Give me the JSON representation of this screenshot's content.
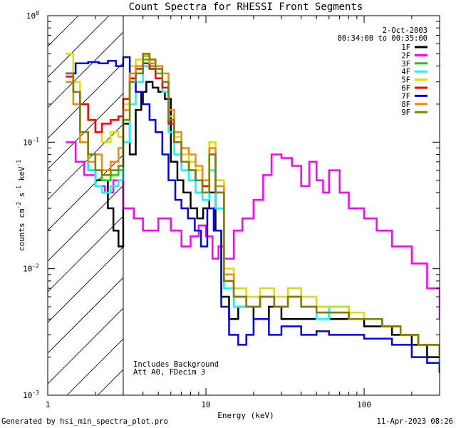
{
  "chart_data": {
    "type": "line",
    "title": "Count Spectra for RHESSI Front Segments",
    "xlabel": "Energy (keV)",
    "ylabel_base": "counts cm",
    "ylabel_parts": [
      "-2",
      " s",
      "-1",
      " keV",
      "-1"
    ],
    "x_scale": "log",
    "y_scale": "log",
    "xlim": [
      1,
      300
    ],
    "ylim": [
      0.001,
      1
    ],
    "x_ticks": [
      {
        "value": 1,
        "label": "1"
      },
      {
        "value": 10,
        "label": "10"
      },
      {
        "value": 100,
        "label": "100"
      }
    ],
    "y_ticks": [
      {
        "value": 1,
        "base": "10",
        "exp": "0"
      },
      {
        "value": 0.1,
        "base": "10",
        "exp": "-1"
      },
      {
        "value": 0.01,
        "base": "10",
        "exp": "-2"
      },
      {
        "value": 0.001,
        "base": "10",
        "exp": "-3"
      }
    ],
    "hatch_region": {
      "x_max": 3
    },
    "legend": {
      "position": "top-right",
      "date": "2-Oct-2003",
      "time_range": "00:34:00 to 00:35:00"
    },
    "annotations": [
      "Includes Background",
      "Att A0, FDecim 3"
    ],
    "series": [
      {
        "name": "1F",
        "color": "#000000",
        "x": [
          1.3,
          1.45,
          1.6,
          1.8,
          2.0,
          2.2,
          2.4,
          2.6,
          2.8,
          3.0,
          3.3,
          3.6,
          3.9,
          4.2,
          4.6,
          5.0,
          5.5,
          6.0,
          6.6,
          7.2,
          8.0,
          8.8,
          9.6,
          10.5,
          11.5,
          12.5,
          14,
          16,
          18,
          20,
          25,
          30,
          40,
          50,
          60,
          80,
          100,
          150,
          200,
          250,
          300
        ],
        "y": [
          0.35,
          0.25,
          0.12,
          0.06,
          0.05,
          0.05,
          0.03,
          0.02,
          0.015,
          0.14,
          0.08,
          0.18,
          0.25,
          0.3,
          0.27,
          0.25,
          0.22,
          0.07,
          0.05,
          0.04,
          0.03,
          0.025,
          0.03,
          0.04,
          0.02,
          0.006,
          0.004,
          0.005,
          0.005,
          0.004,
          0.005,
          0.004,
          0.004,
          0.004,
          0.004,
          0.004,
          0.0035,
          0.003,
          0.0025,
          0.002,
          0.0015
        ]
      },
      {
        "name": "2F",
        "color": "#ff00ff",
        "x": [
          1.3,
          1.5,
          1.7,
          2.0,
          2.3,
          2.6,
          3.0,
          3.5,
          4.0,
          5.0,
          6.0,
          7.0,
          8.0,
          9.0,
          10.0,
          11.0,
          12.0,
          13.0,
          15.0,
          17.0,
          20.0,
          23.0,
          26.0,
          30.0,
          35.0,
          40.0,
          45.0,
          50.0,
          55.0,
          60.0,
          70.0,
          80.0,
          100.0,
          120.0,
          150.0,
          200.0,
          250.0,
          300.0
        ],
        "y": [
          0.1,
          0.07,
          0.055,
          0.045,
          0.04,
          0.05,
          0.03,
          0.025,
          0.02,
          0.025,
          0.02,
          0.015,
          0.018,
          0.022,
          0.018,
          0.012,
          0.015,
          0.012,
          0.02,
          0.025,
          0.035,
          0.055,
          0.08,
          0.075,
          0.065,
          0.045,
          0.07,
          0.05,
          0.04,
          0.06,
          0.04,
          0.03,
          0.025,
          0.02,
          0.015,
          0.011,
          0.007,
          0.004
        ]
      },
      {
        "name": "3F",
        "color": "#00dd00",
        "x": [
          1.3,
          1.45,
          1.6,
          1.8,
          2.0,
          2.2,
          2.5,
          2.8,
          3.0,
          3.3,
          3.6,
          4.0,
          4.4,
          4.8,
          5.3,
          5.8,
          6.3,
          7.0,
          7.8,
          8.6,
          9.5,
          10.5,
          11.5,
          13,
          15,
          18,
          22,
          27,
          33,
          40,
          50,
          60,
          80,
          100,
          130,
          170,
          220,
          300
        ],
        "y": [
          0.3,
          0.2,
          0.1,
          0.08,
          0.06,
          0.05,
          0.055,
          0.06,
          0.15,
          0.3,
          0.35,
          0.45,
          0.4,
          0.35,
          0.3,
          0.15,
          0.1,
          0.07,
          0.06,
          0.05,
          0.04,
          0.08,
          0.04,
          0.008,
          0.006,
          0.005,
          0.006,
          0.005,
          0.007,
          0.005,
          0.005,
          0.005,
          0.004,
          0.004,
          0.0035,
          0.003,
          0.0025,
          0.002
        ]
      },
      {
        "name": "4F",
        "color": "#00ffff",
        "x": [
          1.3,
          1.45,
          1.6,
          1.8,
          2.0,
          2.2,
          2.5,
          2.8,
          3.0,
          3.3,
          3.6,
          4.0,
          4.4,
          4.8,
          5.3,
          5.8,
          6.3,
          7.0,
          7.8,
          8.6,
          9.5,
          10.5,
          11.5,
          13,
          15,
          18,
          22,
          27,
          33,
          40,
          50,
          60,
          80,
          100,
          130,
          170,
          220,
          300
        ],
        "y": [
          0.3,
          0.2,
          0.1,
          0.06,
          0.045,
          0.04,
          0.045,
          0.05,
          0.1,
          0.2,
          0.3,
          0.4,
          0.38,
          0.32,
          0.25,
          0.12,
          0.08,
          0.06,
          0.05,
          0.04,
          0.035,
          0.06,
          0.03,
          0.007,
          0.005,
          0.005,
          0.006,
          0.005,
          0.006,
          0.005,
          0.004,
          0.005,
          0.004,
          0.004,
          0.0035,
          0.003,
          0.0025,
          0.0018
        ]
      },
      {
        "name": "5F",
        "color": "#dddd00",
        "x": [
          1.3,
          1.45,
          1.6,
          1.8,
          2.0,
          2.2,
          2.5,
          2.8,
          3.0,
          3.3,
          3.6,
          4.0,
          4.4,
          4.8,
          5.3,
          5.8,
          6.3,
          7.0,
          7.8,
          8.6,
          9.5,
          10.5,
          11.5,
          13,
          15,
          18,
          22,
          27,
          33,
          40,
          50,
          60,
          80,
          100,
          130,
          170,
          220,
          300
        ],
        "y": [
          0.5,
          0.3,
          0.2,
          0.15,
          0.12,
          0.1,
          0.12,
          0.11,
          0.2,
          0.4,
          0.45,
          0.5,
          0.45,
          0.38,
          0.3,
          0.16,
          0.11,
          0.08,
          0.07,
          0.06,
          0.05,
          0.1,
          0.05,
          0.01,
          0.007,
          0.006,
          0.007,
          0.006,
          0.007,
          0.006,
          0.005,
          0.005,
          0.0045,
          0.004,
          0.0035,
          0.003,
          0.0025,
          0.002
        ]
      },
      {
        "name": "6F",
        "color": "#ff0000",
        "x": [
          1.3,
          1.45,
          1.6,
          1.8,
          2.0,
          2.2,
          2.5,
          2.8,
          3.0,
          3.3,
          3.6,
          4.0,
          4.4,
          4.8,
          5.3,
          5.8,
          6.3,
          7.0,
          7.8,
          8.6,
          9.5,
          10.5,
          11.5,
          13,
          15,
          18,
          22,
          27,
          33,
          40,
          50,
          60,
          80,
          100,
          130,
          170,
          220,
          300
        ],
        "y": [
          0.33,
          0.25,
          0.2,
          0.15,
          0.12,
          0.14,
          0.15,
          0.16,
          0.22,
          0.32,
          0.38,
          0.42,
          0.38,
          0.32,
          0.27,
          0.14,
          0.1,
          0.07,
          0.06,
          0.05,
          0.045,
          0.08,
          0.04,
          0.008,
          0.006,
          0.005,
          0.006,
          0.005,
          0.006,
          0.005,
          0.0045,
          0.0045,
          0.004,
          0.004,
          0.0035,
          0.003,
          0.0025,
          0.002
        ]
      },
      {
        "name": "7F",
        "color": "#0000ff",
        "x": [
          1.3,
          1.5,
          1.8,
          2.1,
          2.4,
          2.7,
          3.0,
          3.3,
          3.6,
          4.0,
          4.4,
          4.8,
          5.3,
          5.8,
          6.4,
          7.0,
          7.7,
          8.5,
          9.3,
          10.2,
          11.2,
          12.5,
          14,
          16,
          18,
          20,
          25,
          30,
          40,
          50,
          60,
          80,
          100,
          150,
          200,
          250,
          300
        ],
        "y": [
          0.35,
          0.42,
          0.43,
          0.42,
          0.44,
          0.4,
          0.47,
          0.3,
          0.25,
          0.2,
          0.15,
          0.12,
          0.08,
          0.05,
          0.035,
          0.03,
          0.025,
          0.02,
          0.015,
          0.03,
          0.02,
          0.005,
          0.003,
          0.0025,
          0.003,
          0.004,
          0.003,
          0.0035,
          0.003,
          0.0032,
          0.003,
          0.003,
          0.0028,
          0.0025,
          0.002,
          0.0018,
          0.0015
        ]
      },
      {
        "name": "8F",
        "color": "#ff8800",
        "x": [
          1.3,
          1.45,
          1.6,
          1.8,
          2.0,
          2.2,
          2.5,
          2.8,
          3.0,
          3.3,
          3.6,
          4.0,
          4.4,
          4.8,
          5.3,
          5.8,
          6.3,
          7.0,
          7.8,
          8.6,
          9.5,
          10.5,
          11.5,
          13,
          15,
          18,
          22,
          27,
          33,
          40,
          50,
          60,
          80,
          100,
          130,
          170,
          220,
          300
        ],
        "y": [
          0.3,
          0.2,
          0.1,
          0.07,
          0.08,
          0.06,
          0.07,
          0.09,
          0.18,
          0.35,
          0.4,
          0.48,
          0.42,
          0.4,
          0.35,
          0.18,
          0.12,
          0.09,
          0.08,
          0.065,
          0.05,
          0.09,
          0.045,
          0.009,
          0.006,
          0.005,
          0.006,
          0.005,
          0.006,
          0.005,
          0.0045,
          0.0045,
          0.004,
          0.004,
          0.0035,
          0.003,
          0.0025,
          0.002
        ]
      },
      {
        "name": "9F",
        "color": "#808000",
        "x": [
          1.3,
          1.45,
          1.6,
          1.8,
          2.0,
          2.2,
          2.5,
          2.8,
          3.0,
          3.3,
          3.6,
          4.0,
          4.4,
          4.8,
          5.3,
          5.8,
          6.3,
          7.0,
          7.8,
          8.6,
          9.5,
          10.5,
          11.5,
          13,
          15,
          18,
          22,
          27,
          33,
          40,
          50,
          60,
          80,
          100,
          130,
          170,
          220,
          300
        ],
        "y": [
          0.35,
          0.25,
          0.12,
          0.08,
          0.06,
          0.055,
          0.06,
          0.065,
          0.15,
          0.3,
          0.35,
          0.5,
          0.45,
          0.38,
          0.3,
          0.15,
          0.1,
          0.07,
          0.06,
          0.05,
          0.04,
          0.08,
          0.04,
          0.008,
          0.006,
          0.005,
          0.006,
          0.005,
          0.006,
          0.005,
          0.0045,
          0.0045,
          0.004,
          0.004,
          0.0035,
          0.003,
          0.0025,
          0.002
        ]
      }
    ]
  },
  "footer": {
    "left": "Generated by hsi_min_spectra_plot.pro",
    "right": "11-Apr-2023 08:26"
  }
}
